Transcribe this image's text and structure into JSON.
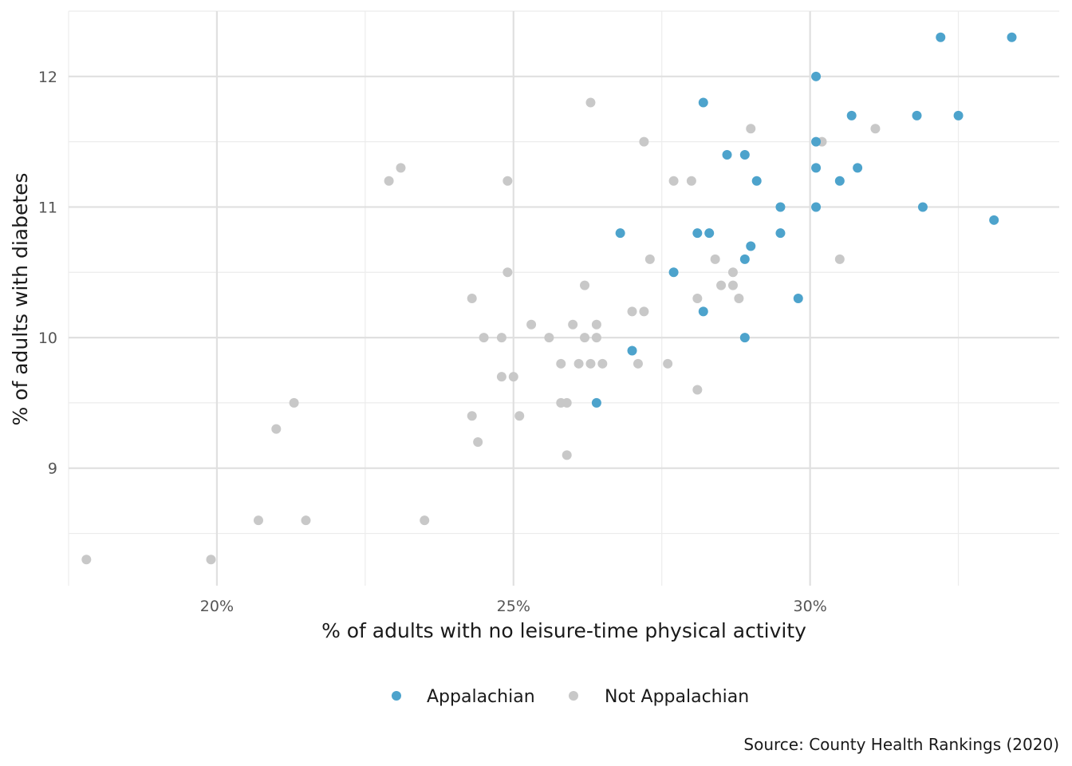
{
  "chart_data": {
    "type": "scatter",
    "title": "",
    "xlabel": "% of adults with no leisure-time physical activity",
    "ylabel": "% of adults with diabetes",
    "caption": "Source: County Health Rankings (2020)",
    "xlim": [
      17.5,
      34.2
    ],
    "ylim": [
      8.1,
      12.5
    ],
    "x_ticks": [
      20,
      25,
      30
    ],
    "x_tick_labels": [
      "20%",
      "25%",
      "30%"
    ],
    "y_ticks": [
      9,
      10,
      11,
      12
    ],
    "y_tick_labels": [
      "9",
      "10",
      "11",
      "12"
    ],
    "grid": true,
    "legend_position": "bottom",
    "series": [
      {
        "name": "Appalachian",
        "color": "#4da3cc",
        "points": [
          [
            32.2,
            12.3
          ],
          [
            33.4,
            12.3
          ],
          [
            30.1,
            12.0
          ],
          [
            28.2,
            11.8
          ],
          [
            30.7,
            11.7
          ],
          [
            31.8,
            11.7
          ],
          [
            32.5,
            11.7
          ],
          [
            30.1,
            11.5
          ],
          [
            28.6,
            11.4
          ],
          [
            28.9,
            11.4
          ],
          [
            30.1,
            11.3
          ],
          [
            30.8,
            11.3
          ],
          [
            29.1,
            11.2
          ],
          [
            30.5,
            11.2
          ],
          [
            29.5,
            11.0
          ],
          [
            30.1,
            11.0
          ],
          [
            31.9,
            11.0
          ],
          [
            33.1,
            10.9
          ],
          [
            26.8,
            10.8
          ],
          [
            28.1,
            10.8
          ],
          [
            28.3,
            10.8
          ],
          [
            29.5,
            10.8
          ],
          [
            29.0,
            10.7
          ],
          [
            28.9,
            10.6
          ],
          [
            27.7,
            10.5
          ],
          [
            29.8,
            10.3
          ],
          [
            28.2,
            10.2
          ],
          [
            28.9,
            10.0
          ],
          [
            27.0,
            9.9
          ],
          [
            26.4,
            9.5
          ]
        ]
      },
      {
        "name": "Not Appalachian",
        "color": "#c8c8c8",
        "points": [
          [
            26.3,
            11.8
          ],
          [
            29.0,
            11.6
          ],
          [
            31.1,
            11.6
          ],
          [
            27.2,
            11.5
          ],
          [
            30.2,
            11.5
          ],
          [
            23.1,
            11.3
          ],
          [
            22.9,
            11.2
          ],
          [
            24.9,
            11.2
          ],
          [
            27.7,
            11.2
          ],
          [
            28.0,
            11.2
          ],
          [
            27.3,
            10.6
          ],
          [
            28.4,
            10.6
          ],
          [
            30.5,
            10.6
          ],
          [
            24.9,
            10.5
          ],
          [
            28.7,
            10.5
          ],
          [
            26.2,
            10.4
          ],
          [
            28.5,
            10.4
          ],
          [
            28.7,
            10.4
          ],
          [
            24.3,
            10.3
          ],
          [
            28.1,
            10.3
          ],
          [
            28.8,
            10.3
          ],
          [
            27.0,
            10.2
          ],
          [
            27.2,
            10.2
          ],
          [
            25.3,
            10.1
          ],
          [
            26.0,
            10.1
          ],
          [
            26.4,
            10.1
          ],
          [
            24.5,
            10.0
          ],
          [
            24.8,
            10.0
          ],
          [
            25.6,
            10.0
          ],
          [
            26.2,
            10.0
          ],
          [
            26.4,
            10.0
          ],
          [
            25.8,
            9.8
          ],
          [
            26.1,
            9.8
          ],
          [
            26.3,
            9.8
          ],
          [
            26.5,
            9.8
          ],
          [
            27.1,
            9.8
          ],
          [
            27.6,
            9.8
          ],
          [
            24.8,
            9.7
          ],
          [
            25.0,
            9.7
          ],
          [
            28.1,
            9.6
          ],
          [
            21.3,
            9.5
          ],
          [
            25.8,
            9.5
          ],
          [
            25.9,
            9.5
          ],
          [
            24.3,
            9.4
          ],
          [
            25.1,
            9.4
          ],
          [
            21.0,
            9.3
          ],
          [
            24.4,
            9.2
          ],
          [
            25.9,
            9.1
          ],
          [
            20.7,
            8.6
          ],
          [
            21.5,
            8.6
          ],
          [
            23.5,
            8.6
          ],
          [
            17.8,
            8.3
          ],
          [
            19.9,
            8.3
          ]
        ]
      }
    ]
  }
}
